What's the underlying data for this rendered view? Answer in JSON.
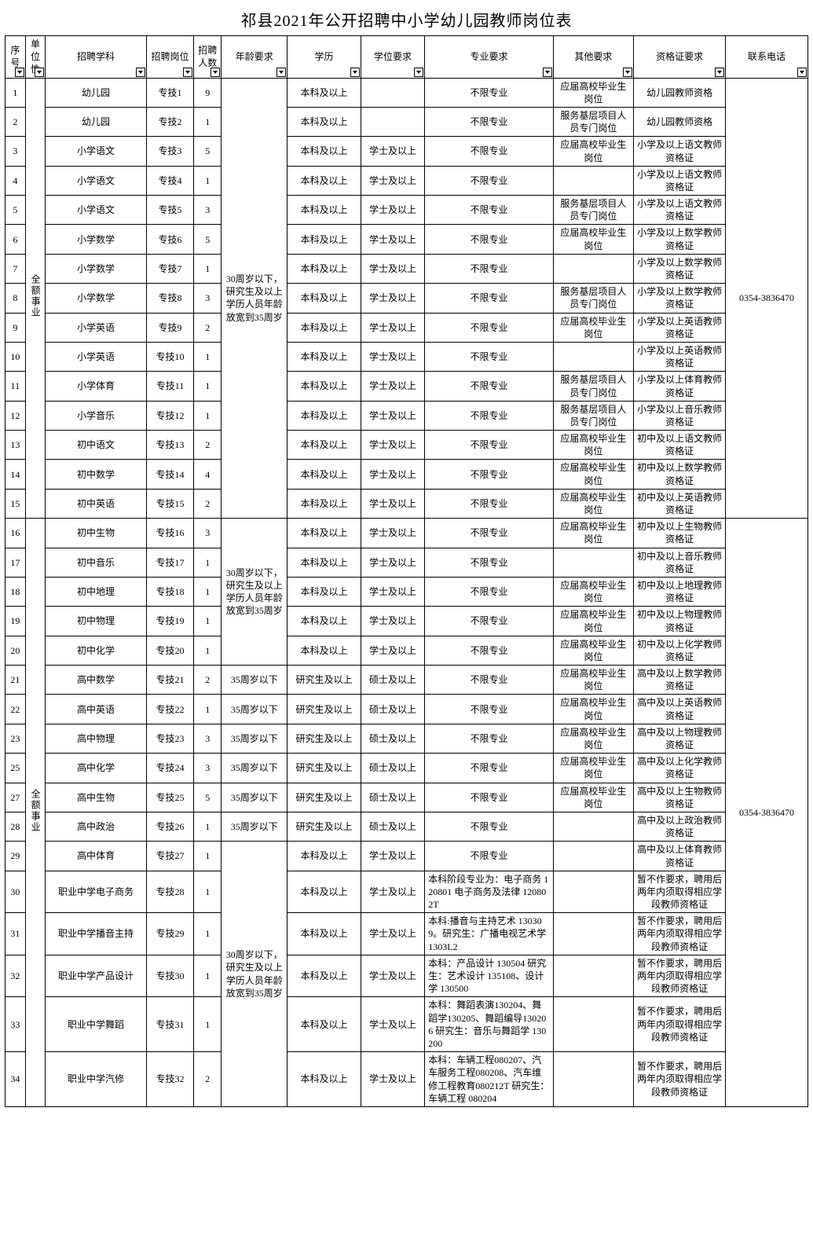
{
  "title": "祁县2021年公开招聘中小学幼儿园教师岗位表",
  "headers": {
    "xh": "序号",
    "dw": "单位性",
    "xk": "招聘学科",
    "gw": "招聘岗位",
    "rs": "招聘人数",
    "nl": "年龄要求",
    "xl": "学历",
    "xw": "学位要求",
    "zy": "专业要求",
    "qt": "其他要求",
    "zg": "资格证要求",
    "dh": "联系电话"
  },
  "danwei": "全额事业",
  "tel": "0354-3836470",
  "age1": "30周岁以下，研究生及以上学历人员年龄放宽到35周岁",
  "age2": "30周岁以下，研究生及以上学历人员年龄放宽到35周岁",
  "age3": "35周岁以下",
  "age4": "30周岁以下，研究生及以上学历人员年龄放宽到35周岁",
  "xl_bk": "本科及以上",
  "xl_yjs": "研究生及以上",
  "xw_xs": "学士及以上",
  "xw_ss": "硕士及以上",
  "zy_bx": "不限专业",
  "qt_yingjie": "应届高校毕业生岗位",
  "qt_jiceng": "服务基层项目人员专门岗位",
  "zg_yey": "幼儿园教师资格",
  "zg_xxyw": "小学及以上语文教师资格证",
  "zg_xxsx": "小学及以上数学教师资格证",
  "zg_xxyy": "小学及以上英语教师资格证",
  "zg_xxty": "小学及以上体育教师资格证",
  "zg_xxyl": "小学及以上音乐教师资格证",
  "zg_czyw": "初中及以上语文教师资格证",
  "zg_czsx": "初中及以上数学教师资格证",
  "zg_czyy": "初中及以上英语教师资格证",
  "zg_czsw": "初中及以上生物教师资格证",
  "zg_czyl": "初中及以上音乐教师资格证",
  "zg_czdl": "初中及以上地理教师资格证",
  "zg_czwl": "初中及以上物理教师资格证",
  "zg_czhx": "初中及以上化学教师资格证",
  "zg_gzsx": "高中及以上数学教师资格证",
  "zg_gzyy": "高中及以上英语教师资格证",
  "zg_gzwl": "高中及以上物理教师资格证",
  "zg_gzhx": "高中及以上化学教师资格证",
  "zg_gzsw": "高中及以上生物教师资格证",
  "zg_gzzz": "高中及以上政治教师资格证",
  "zg_gzty": "高中及以上体育教师资格证",
  "zg_zan": "暂不作要求，聘用后两年内须取得相应学段教师资格证",
  "r1": {
    "xh": "1",
    "xk": "幼儿园",
    "gw": "专技1",
    "rs": "9"
  },
  "r2": {
    "xh": "2",
    "xk": "幼儿园",
    "gw": "专技2",
    "rs": "1"
  },
  "r3": {
    "xh": "3",
    "xk": "小学语文",
    "gw": "专技3",
    "rs": "5"
  },
  "r4": {
    "xh": "4",
    "xk": "小学语文",
    "gw": "专技4",
    "rs": "1"
  },
  "r5": {
    "xh": "5",
    "xk": "小学语文",
    "gw": "专技5",
    "rs": "3"
  },
  "r6": {
    "xh": "6",
    "xk": "小学数学",
    "gw": "专技6",
    "rs": "5"
  },
  "r7": {
    "xh": "7",
    "xk": "小学数学",
    "gw": "专技7",
    "rs": "1"
  },
  "r8": {
    "xh": "8",
    "xk": "小学数学",
    "gw": "专技8",
    "rs": "3"
  },
  "r9": {
    "xh": "9",
    "xk": "小学英语",
    "gw": "专技9",
    "rs": "2"
  },
  "r10": {
    "xh": "10",
    "xk": "小学英语",
    "gw": "专技10",
    "rs": "1"
  },
  "r11": {
    "xh": "11",
    "xk": "小学体育",
    "gw": "专技11",
    "rs": "1"
  },
  "r12": {
    "xh": "12",
    "xk": "小学音乐",
    "gw": "专技12",
    "rs": "1"
  },
  "r13": {
    "xh": "13",
    "xk": "初中语文",
    "gw": "专技13",
    "rs": "2"
  },
  "r14": {
    "xh": "14",
    "xk": "初中数学",
    "gw": "专技14",
    "rs": "4"
  },
  "r15": {
    "xh": "15",
    "xk": "初中英语",
    "gw": "专技15",
    "rs": "2"
  },
  "r16": {
    "xh": "16",
    "xk": "初中生物",
    "gw": "专技16",
    "rs": "3"
  },
  "r17": {
    "xh": "17",
    "xk": "初中音乐",
    "gw": "专技17",
    "rs": "1"
  },
  "r18": {
    "xh": "18",
    "xk": "初中地理",
    "gw": "专技18",
    "rs": "1"
  },
  "r19": {
    "xh": "19",
    "xk": "初中物理",
    "gw": "专技19",
    "rs": "1"
  },
  "r20": {
    "xh": "20",
    "xk": "初中化学",
    "gw": "专技20",
    "rs": "1"
  },
  "r21": {
    "xh": "21",
    "xk": "高中数学",
    "gw": "专技21",
    "rs": "2"
  },
  "r22": {
    "xh": "22",
    "xk": "高中英语",
    "gw": "专技22",
    "rs": "1"
  },
  "r23": {
    "xh": "23",
    "xk": "高中物理",
    "gw": "专技23",
    "rs": "3"
  },
  "r25": {
    "xh": "25",
    "xk": "高中化学",
    "gw": "专技24",
    "rs": "3"
  },
  "r27": {
    "xh": "27",
    "xk": "高中生物",
    "gw": "专技25",
    "rs": "5"
  },
  "r28": {
    "xh": "28",
    "xk": "高中政治",
    "gw": "专技26",
    "rs": "1"
  },
  "r29": {
    "xh": "29",
    "xk": "高中体育",
    "gw": "专技27",
    "rs": "1"
  },
  "r30": {
    "xh": "30",
    "xk": "职业中学电子商务",
    "gw": "专技28",
    "rs": "1",
    "zy": "本科阶段专业为：电子商务 120801 电子商务及法律 120802T"
  },
  "r31": {
    "xh": "31",
    "xk": "职业中学播音主持",
    "gw": "专技29",
    "rs": "1",
    "zy": "本科:播音与主持艺术 130309。研究生：广播电视艺术学 1303L2"
  },
  "r32": {
    "xh": "32",
    "xk": "职业中学产品设计",
    "gw": "专技30",
    "rs": "1",
    "zy": "本科：产品设计 130504 研究生：艺术设计 135108、设计学 130500"
  },
  "r33": {
    "xh": "33",
    "xk": "职业中学舞蹈",
    "gw": "专技31",
    "rs": "1",
    "zy": "本科：舞蹈表演130204、舞蹈学130205、舞蹈编导130206 研究生：音乐与舞蹈学 130200"
  },
  "r34": {
    "xh": "34",
    "xk": "职业中学汽修",
    "gw": "专技32",
    "rs": "2",
    "zy": "本科：车辆工程080207、汽车服务工程080208、汽车维修工程教育080212T 研究生：车辆工程 080204"
  }
}
